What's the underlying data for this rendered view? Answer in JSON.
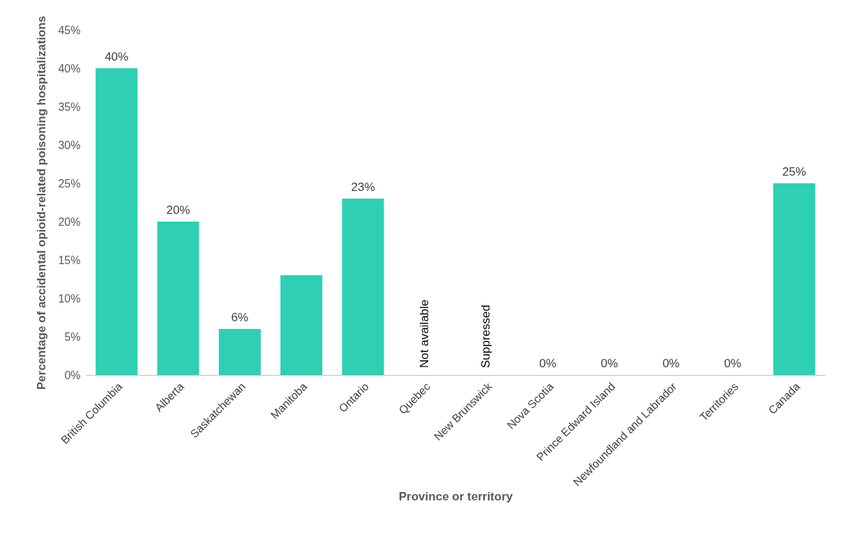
{
  "chart_data": {
    "type": "bar",
    "xlabel": "Province or territory",
    "ylabel": "Percentage of accidental opioid-related poisoning hospitalizations",
    "categories": [
      "British Columbia",
      "Alberta",
      "Saskatchewan",
      "Manitoba",
      "Ontario",
      "Quebec",
      "New Brunswick",
      "Nova Scotia",
      "Prince Edward Island",
      "Newfoundland and Labrador",
      "Territories",
      "Canada"
    ],
    "values": [
      40,
      20,
      6,
      13,
      23,
      null,
      null,
      0,
      0,
      0,
      0,
      25
    ],
    "value_labels": [
      "40%",
      "20%",
      "6%",
      null,
      "23%",
      "Not available",
      "Suppressed",
      "0%",
      "0%",
      "0%",
      "0%",
      "25%"
    ],
    "color": "#2ecfb3",
    "ylim": [
      0,
      45
    ],
    "yticks": [
      {
        "value": 0,
        "label": "0%"
      },
      {
        "value": 5,
        "label": "5%"
      },
      {
        "value": 10,
        "label": "10%"
      },
      {
        "value": 15,
        "label": "15%"
      },
      {
        "value": 20,
        "label": "20%"
      },
      {
        "value": 25,
        "label": "25%"
      },
      {
        "value": 30,
        "label": "30%"
      },
      {
        "value": 35,
        "label": "35%"
      },
      {
        "value": 40,
        "label": "40%"
      },
      {
        "value": 45,
        "label": "45%"
      }
    ],
    "grid": false
  }
}
